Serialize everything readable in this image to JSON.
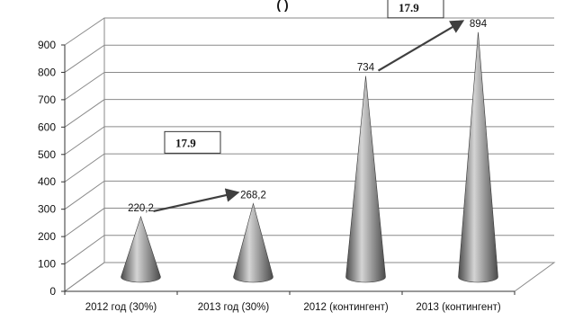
{
  "title_fragment": "(                    )",
  "chart_data": {
    "type": "bar",
    "bar_shape": "cone",
    "categories": [
      "2012 год (30%)",
      "2013 год (30%)",
      "2012 (контингент)",
      "2013 (контингент)"
    ],
    "values": [
      220.2,
      268.2,
      734,
      894
    ],
    "data_labels": [
      "220,2",
      "268,2",
      "734",
      "894"
    ],
    "ylim": [
      0,
      900
    ],
    "yticks": [
      0,
      100,
      200,
      300,
      400,
      500,
      600,
      700,
      800,
      900
    ],
    "grid": true,
    "annotations": [
      {
        "text": "17.9",
        "from": 0,
        "to": 1
      },
      {
        "text": "17.9",
        "from": 2,
        "to": 3
      }
    ],
    "colors": {
      "cone_light": "#d4d4d4",
      "cone_dark": "#4a4a4a",
      "arrow": "#3f3f3f"
    }
  }
}
